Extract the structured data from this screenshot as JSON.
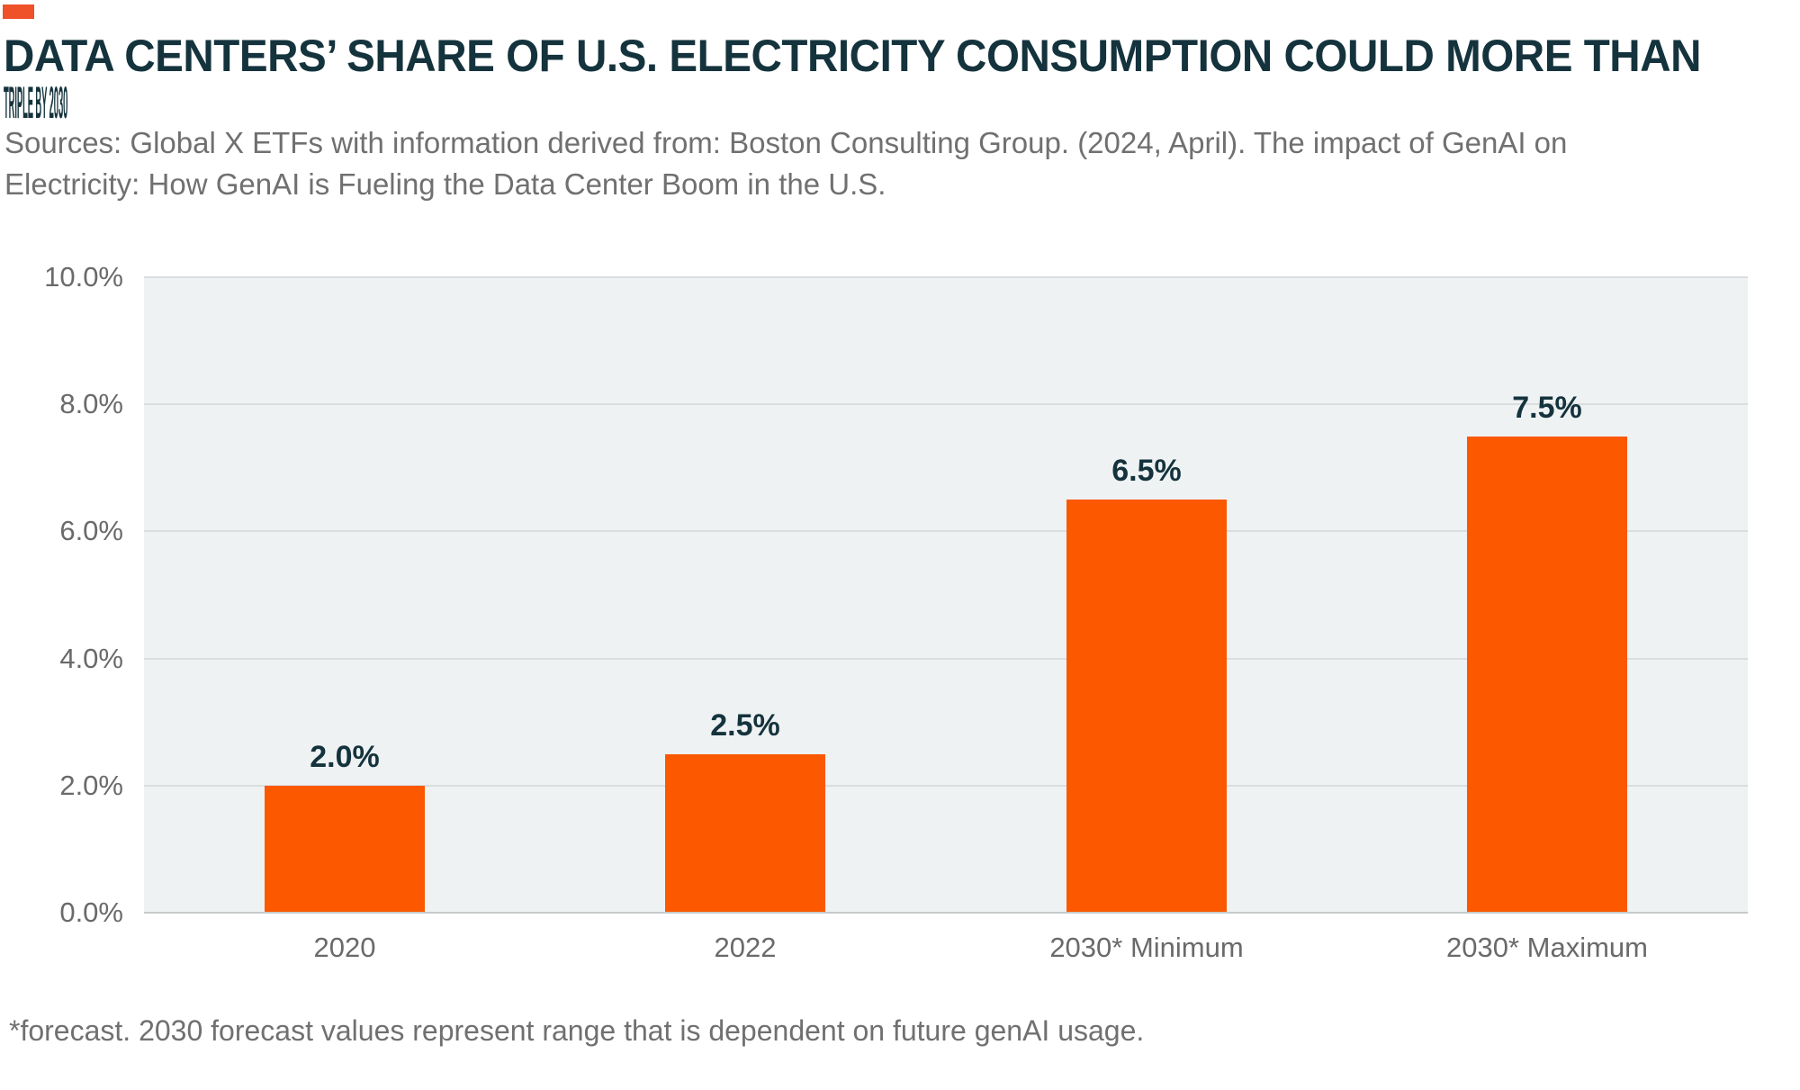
{
  "header": {
    "title_lines": [
      "DATA CENTERS’ SHARE OF U.S. ELECTRICITY CONSUMPTION COULD MORE THAN",
      "TRIPLE BY 2030"
    ],
    "source_lines": [
      "Sources: Global X ETFs with information derived from: Boston Consulting Group. (2024, April). The impact of GenAI on",
      "Electricity: How GenAI is Fueling the Data Center Boom in the U.S."
    ]
  },
  "chart_data": {
    "type": "bar",
    "title": "DATA CENTERS’ SHARE OF U.S. ELECTRICITY CONSUMPTION COULD MORE THAN TRIPLE BY 2030",
    "categories": [
      "2020",
      "2022",
      "2030* Minimum",
      "2030* Maximum"
    ],
    "values": [
      2.0,
      2.5,
      6.5,
      7.5
    ],
    "value_labels": [
      "2.0%",
      "2.5%",
      "6.5%",
      "7.5%"
    ],
    "xlabel": "",
    "ylabel": "",
    "ylim": [
      0,
      10
    ],
    "y_tick_values": [
      10,
      8,
      6,
      4,
      2,
      0
    ],
    "y_tick_labels": [
      "10.0%",
      "8.0%",
      "6.0%",
      "4.0%",
      "2.0%",
      "0.0%"
    ],
    "grid": true,
    "legend": false,
    "bar_color": "#FB5800"
  },
  "footnote": "*forecast. 2030 forecast values represent range that is dependent on future genAI usage.",
  "colors": {
    "accent_dash": "#EF5128",
    "bar": "#FB5800",
    "title_text": "#14333D",
    "body_text": "#707070",
    "axis_text": "#6A6A6A",
    "plot_background": "#EFF2F3",
    "gridline": "#DADEDF",
    "baseline": "#C6CACB"
  }
}
